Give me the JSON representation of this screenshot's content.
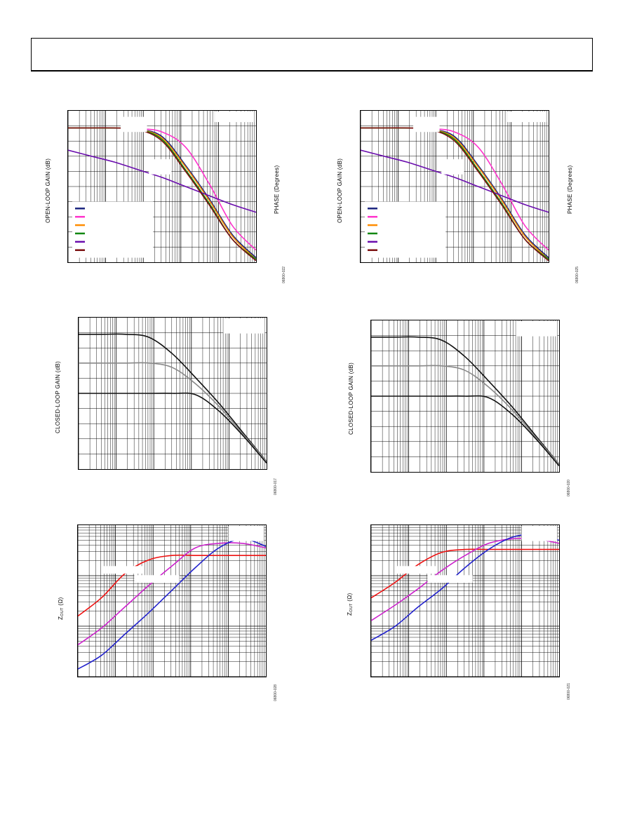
{
  "figures": [
    {
      "id": "open-loop-left",
      "ylabel": "OPEN-LOOP GAIN (dB)",
      "rlabel": "PHASE (Degrees)",
      "fig_id": "06800-022",
      "chart_data": {
        "type": "line",
        "xscale": "log",
        "grid": true,
        "legend_placement": "bottom-left",
        "series": [
          {
            "color": "#1a237e",
            "y": [
              0.887,
              0.887,
              0.886,
              0.878,
              0.83,
              0.64,
              0.42,
              0.18,
              0.03
            ]
          },
          {
            "color": "#ff33cc",
            "y": [
              0.887,
              0.887,
              0.886,
              0.882,
              0.86,
              0.76,
              0.52,
              0.24,
              0.08
            ]
          },
          {
            "color": "#ff8c00",
            "y": [
              0.887,
              0.887,
              0.886,
              0.878,
              0.82,
              0.63,
              0.41,
              0.17,
              0.02
            ]
          },
          {
            "color": "#118811",
            "y": [
              0.887,
              0.887,
              0.886,
              0.877,
              0.81,
              0.61,
              0.39,
              0.15,
              0.02
            ]
          },
          {
            "color": "#6a0dad",
            "y": [
              0.74,
              0.7,
              0.66,
              0.61,
              0.56,
              0.5,
              0.44,
              0.38,
              0.33
            ]
          },
          {
            "color": "#7b1010",
            "y": [
              0.887,
              0.887,
              0.886,
              0.876,
              0.8,
              0.6,
              0.38,
              0.15,
              0.01
            ]
          }
        ]
      }
    },
    {
      "id": "open-loop-right",
      "ylabel": "OPEN-LOOP GAIN (dB)",
      "rlabel": "PHASE (Degrees)",
      "fig_id": "06800-025",
      "chart_data": {
        "type": "line",
        "xscale": "log",
        "grid": true,
        "legend_placement": "bottom-left",
        "series": [
          {
            "color": "#1a237e",
            "y": [
              0.887,
              0.887,
              0.886,
              0.878,
              0.83,
              0.64,
              0.42,
              0.18,
              0.03
            ]
          },
          {
            "color": "#ff33cc",
            "y": [
              0.887,
              0.887,
              0.886,
              0.882,
              0.86,
              0.76,
              0.52,
              0.24,
              0.08
            ]
          },
          {
            "color": "#ff8c00",
            "y": [
              0.887,
              0.887,
              0.886,
              0.878,
              0.82,
              0.63,
              0.41,
              0.17,
              0.02
            ]
          },
          {
            "color": "#118811",
            "y": [
              0.887,
              0.887,
              0.886,
              0.877,
              0.81,
              0.61,
              0.39,
              0.15,
              0.02
            ]
          },
          {
            "color": "#6a0dad",
            "y": [
              0.74,
              0.7,
              0.66,
              0.61,
              0.56,
              0.5,
              0.44,
              0.38,
              0.33
            ]
          },
          {
            "color": "#7b1010",
            "y": [
              0.887,
              0.887,
              0.886,
              0.876,
              0.8,
              0.6,
              0.38,
              0.15,
              0.01
            ]
          }
        ]
      }
    },
    {
      "id": "closed-loop-left",
      "ylabel": "CLOSED-LOOP GAIN (dB)",
      "fig_id": "06800-017",
      "chart_data": {
        "type": "line",
        "xscale": "log",
        "grid": true,
        "series": [
          {
            "color": "#111111",
            "y": [
              0.89,
              0.89,
              0.89,
              0.87,
              0.76,
              0.6,
              0.43,
              0.24,
              0.05
            ]
          },
          {
            "color": "#888888",
            "y": [
              0.7,
              0.7,
              0.7,
              0.7,
              0.67,
              0.56,
              0.41,
              0.23,
              0.05
            ]
          },
          {
            "color": "#111111",
            "y": [
              0.5,
              0.5,
              0.5,
              0.5,
              0.5,
              0.49,
              0.38,
              0.22,
              0.04
            ]
          }
        ]
      }
    },
    {
      "id": "closed-loop-right",
      "ylabel": "CLOSED-LOOP GAIN (dB)",
      "fig_id": "06800-020",
      "chart_data": {
        "type": "line",
        "xscale": "log",
        "grid": true,
        "series": [
          {
            "color": "#111111",
            "y": [
              0.89,
              0.89,
              0.89,
              0.87,
              0.76,
              0.6,
              0.43,
              0.24,
              0.05
            ]
          },
          {
            "color": "#888888",
            "y": [
              0.7,
              0.7,
              0.7,
              0.7,
              0.67,
              0.56,
              0.41,
              0.23,
              0.05
            ]
          },
          {
            "color": "#111111",
            "y": [
              0.5,
              0.5,
              0.5,
              0.5,
              0.5,
              0.49,
              0.38,
              0.22,
              0.04
            ]
          }
        ]
      }
    },
    {
      "id": "zout-left",
      "ylabel_main": "Z",
      "ylabel_sub": "OUT",
      "ylabel_unit": " (Ω)",
      "fig_id": "06800-028",
      "chart_data": {
        "type": "line",
        "xscale": "log",
        "yscale": "log",
        "grid": true,
        "series": [
          {
            "color": "#ee1111",
            "y": [
              0.4,
              0.52,
              0.68,
              0.77,
              0.8,
              0.8,
              0.8,
              0.8,
              0.8
            ]
          },
          {
            "color": "#cc22cc",
            "y": [
              0.21,
              0.32,
              0.46,
              0.6,
              0.73,
              0.85,
              0.88,
              0.88,
              0.85
            ]
          },
          {
            "color": "#2222cc",
            "y": [
              0.05,
              0.14,
              0.28,
              0.42,
              0.57,
              0.72,
              0.85,
              0.91,
              0.86
            ]
          }
        ]
      }
    },
    {
      "id": "zout-right",
      "ylabel_main": "Z",
      "ylabel_sub": "OUT",
      "ylabel_unit": " (Ω)",
      "fig_id": "06800-021",
      "chart_data": {
        "type": "line",
        "xscale": "log",
        "yscale": "log",
        "grid": true,
        "series": [
          {
            "color": "#ee1111",
            "y": [
              0.52,
              0.62,
              0.74,
              0.82,
              0.84,
              0.84,
              0.84,
              0.84,
              0.84
            ]
          },
          {
            "color": "#cc22cc",
            "y": [
              0.37,
              0.47,
              0.58,
              0.7,
              0.8,
              0.88,
              0.91,
              0.91,
              0.88
            ]
          },
          {
            "color": "#2222cc",
            "y": [
              0.24,
              0.33,
              0.46,
              0.58,
              0.72,
              0.84,
              0.92,
              0.94,
              0.9
            ]
          }
        ]
      }
    }
  ]
}
